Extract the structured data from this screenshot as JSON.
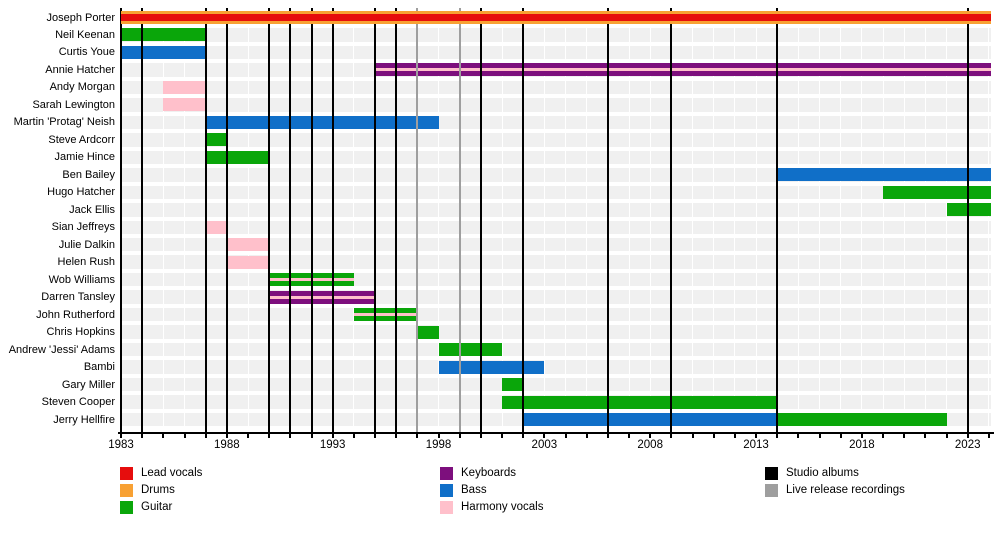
{
  "chart_data": {
    "type": "timeline",
    "x_axis": {
      "domain": [
        1983,
        2024.1
      ],
      "tick_labels": [
        1983,
        1988,
        1993,
        1998,
        2003,
        2008,
        2013,
        2018,
        2023
      ],
      "minor_tick_step": 1
    },
    "roles": {
      "lead_vocals": {
        "label": "Lead vocals",
        "color": "#e60d0d"
      },
      "drums": {
        "label": "Drums",
        "color": "#f8a133"
      },
      "guitar": {
        "label": "Guitar",
        "color": "#0aa60a"
      },
      "keyboards": {
        "label": "Keyboards",
        "color": "#7d0f7d"
      },
      "bass": {
        "label": "Bass",
        "color": "#106fc8"
      },
      "harmony_vocals": {
        "label": "Harmony vocals",
        "color": "#ffc0cb"
      }
    },
    "members": [
      {
        "name": "Joseph Porter",
        "segments": [
          {
            "role": "drums",
            "start": 1983,
            "end": 2024.1,
            "stripe": "lead_vocals",
            "stripe_height": 7
          }
        ]
      },
      {
        "name": "Neil Keenan",
        "segments": [
          {
            "role": "guitar",
            "start": 1983,
            "end": 1987
          }
        ]
      },
      {
        "name": "Curtis Youe",
        "segments": [
          {
            "role": "bass",
            "start": 1983,
            "end": 1987
          }
        ]
      },
      {
        "name": "Annie Hatcher",
        "segments": [
          {
            "role": "keyboards",
            "start": 1995,
            "end": 2024.1,
            "stripe": "harmony_vocals",
            "stripe_height": 3
          }
        ]
      },
      {
        "name": "Andy Morgan",
        "segments": [
          {
            "role": "harmony_vocals",
            "start": 1985,
            "end": 1987
          }
        ]
      },
      {
        "name": "Sarah Lewington",
        "segments": [
          {
            "role": "harmony_vocals",
            "start": 1985,
            "end": 1987
          }
        ]
      },
      {
        "name": "Martin 'Protag' Neish",
        "segments": [
          {
            "role": "bass",
            "start": 1987,
            "end": 1998
          }
        ]
      },
      {
        "name": "Steve Ardcorr",
        "segments": [
          {
            "role": "guitar",
            "start": 1987,
            "end": 1988
          }
        ]
      },
      {
        "name": "Jamie Hince",
        "segments": [
          {
            "role": "guitar",
            "start": 1987,
            "end": 1990
          }
        ]
      },
      {
        "name": "Ben Bailey",
        "segments": [
          {
            "role": "bass",
            "start": 2014,
            "end": 2024.1
          }
        ]
      },
      {
        "name": "Hugo Hatcher",
        "segments": [
          {
            "role": "guitar",
            "start": 2019,
            "end": 2024.1
          }
        ]
      },
      {
        "name": "Jack Ellis",
        "segments": [
          {
            "role": "guitar",
            "start": 2022,
            "end": 2024.1
          }
        ]
      },
      {
        "name": "Sian Jeffreys",
        "segments": [
          {
            "role": "harmony_vocals",
            "start": 1987,
            "end": 1988
          }
        ]
      },
      {
        "name": "Julie Dalkin",
        "segments": [
          {
            "role": "harmony_vocals",
            "start": 1988,
            "end": 1990
          }
        ]
      },
      {
        "name": "Helen Rush",
        "segments": [
          {
            "role": "harmony_vocals",
            "start": 1988,
            "end": 1990
          }
        ]
      },
      {
        "name": "Wob Williams",
        "segments": [
          {
            "role": "guitar",
            "start": 1990,
            "end": 1994,
            "stripe": "harmony_vocals",
            "stripe_height": 3
          }
        ]
      },
      {
        "name": "Darren Tansley",
        "segments": [
          {
            "role": "keyboards",
            "start": 1990,
            "end": 1995,
            "stripe": "harmony_vocals",
            "stripe_height": 3
          }
        ]
      },
      {
        "name": "John Rutherford",
        "segments": [
          {
            "role": "guitar",
            "start": 1994,
            "end": 1997,
            "stripe": "harmony_vocals",
            "stripe_height": 3
          }
        ]
      },
      {
        "name": "Chris Hopkins",
        "segments": [
          {
            "role": "guitar",
            "start": 1997,
            "end": 1998
          }
        ]
      },
      {
        "name": "Andrew 'Jessi' Adams",
        "segments": [
          {
            "role": "guitar",
            "start": 1998,
            "end": 2001
          }
        ]
      },
      {
        "name": "Bambi",
        "segments": [
          {
            "role": "bass",
            "start": 1998,
            "end": 2003
          }
        ]
      },
      {
        "name": "Gary Miller",
        "segments": [
          {
            "role": "guitar",
            "start": 2001,
            "end": 2002
          }
        ]
      },
      {
        "name": "Steven Cooper",
        "segments": [
          {
            "role": "guitar",
            "start": 2001,
            "end": 2014
          }
        ]
      },
      {
        "name": "Jerry Hellfire",
        "segments": [
          {
            "role": "bass",
            "start": 2002,
            "end": 2014
          },
          {
            "role": "guitar",
            "start": 2014,
            "end": 2022
          }
        ]
      }
    ],
    "events": {
      "studio_albums": {
        "label": "Studio albums",
        "color": "#000000",
        "years": [
          1984,
          1987,
          1988,
          1990,
          1991,
          1992,
          1993,
          1995,
          1996,
          2000,
          2002,
          2006,
          2009,
          2014,
          2023
        ]
      },
      "live_releases": {
        "label": "Live release recordings",
        "color": "#9e9e9e",
        "years": [
          1997,
          1999
        ]
      }
    },
    "legend": {
      "position": "bottom",
      "columns": [
        [
          {
            "label": "Lead vocals",
            "color": "#e60d0d"
          },
          {
            "label": "Drums",
            "color": "#f8a133"
          },
          {
            "label": "Guitar",
            "color": "#0aa60a"
          }
        ],
        [
          {
            "label": "Keyboards",
            "color": "#7d0f7d"
          },
          {
            "label": "Bass",
            "color": "#106fc8"
          },
          {
            "label": "Harmony vocals",
            "color": "#ffc0cb"
          }
        ],
        [
          {
            "label": "Studio albums",
            "color": "#000000"
          },
          {
            "label": "Live release recordings",
            "color": "#9e9e9e"
          }
        ]
      ]
    }
  }
}
